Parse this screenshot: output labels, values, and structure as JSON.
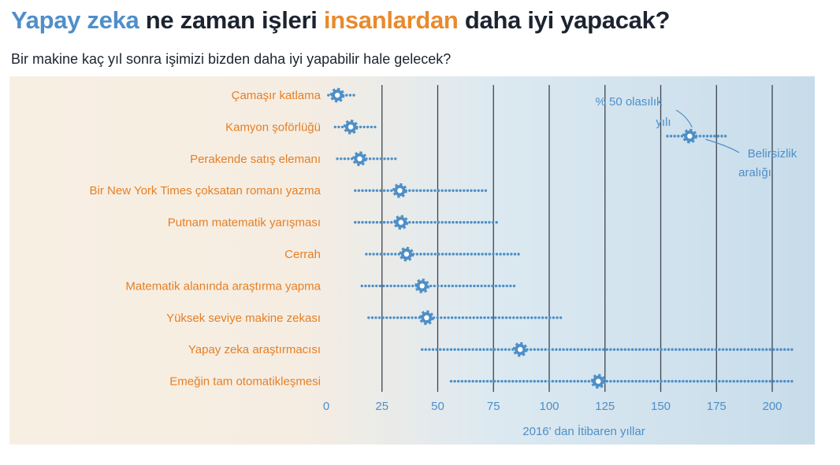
{
  "header": {
    "title_part1": "Yapay zeka",
    "title_part2": " ne zaman işleri ",
    "title_part3": "insanlardan",
    "title_part4": " daha iyi yapacak?",
    "subtitle": "Bir makine kaç yıl sonra işimizi bizden daha iyi yapabilir hale gelecek?"
  },
  "colors": {
    "title_blue": "#4f8fc9",
    "title_orange": "#e98a2c",
    "label_orange": "#e57f24",
    "data_blue": "#4d8fc7",
    "plot_bg_left": "#f8efe3",
    "plot_bg_right": "#c7dcea",
    "grid_dark": "#3b4450"
  },
  "chart_data": {
    "type": "dot-range",
    "categories": [
      "Çamaşır katlama",
      "Kamyon şoförlüğü",
      "Perakende satış elemanı",
      "Bir New York Times çoksatan romanı yazma",
      "Putnam matematik yarışması",
      "Cerrah",
      "Matematik alanında araştırma yapma",
      "Yüksek seviye makine zekası",
      "Yapay zeka araştırmacısı",
      "Emeğin tam otomatikleşmesi"
    ],
    "median_year": [
      5,
      11,
      15,
      33,
      33.5,
      36,
      43,
      45,
      87,
      122
    ],
    "range_low": [
      1,
      4,
      5,
      13,
      13,
      18,
      16,
      19,
      43,
      56
    ],
    "range_high": [
      14,
      23,
      32,
      73,
      78,
      87,
      85,
      106,
      209,
      210
    ],
    "x_ticks": [
      0,
      25,
      50,
      75,
      100,
      125,
      150,
      175,
      200
    ],
    "x_tick_labels": [
      "0",
      "25",
      "50",
      "75",
      "100",
      "125",
      "150",
      "175",
      "200"
    ],
    "xlim": [
      0,
      210
    ],
    "xlabel": "2016' dan İtibaren yıllar",
    "grid": true,
    "legend": {
      "median_label_line1": "% 50 olasılık",
      "median_label_line2": "yılı",
      "range_label_line1": "Belirsizlik",
      "range_label_line2": "aralığı",
      "example_median": 163,
      "example_low": 153,
      "example_high": 180
    }
  }
}
